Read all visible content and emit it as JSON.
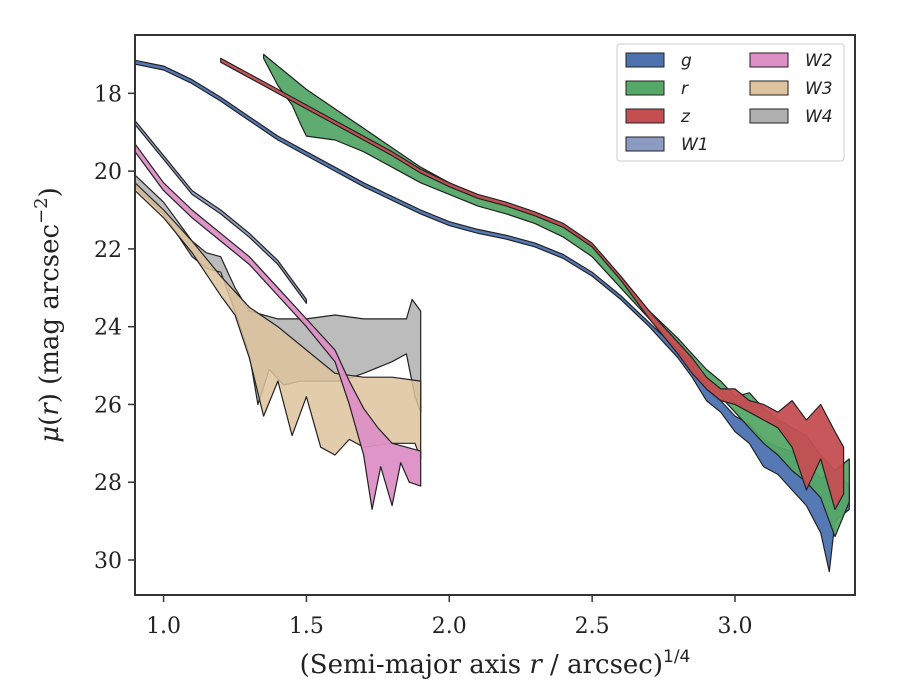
{
  "chart_data": {
    "type": "area",
    "xlabel": "(Semi-major axis r / arcsec)^1/4",
    "ylabel": "μ(r) (mag arcsec^−2)",
    "xlim": [
      0.9,
      3.42
    ],
    "ylim": [
      30.9,
      16.5
    ],
    "y_inverted": true,
    "xticks": [
      1.0,
      1.5,
      2.0,
      2.5,
      3.0
    ],
    "xtick_labels": [
      "1.0",
      "1.5",
      "2.0",
      "2.5",
      "3.0"
    ],
    "yticks": [
      18,
      20,
      22,
      24,
      26,
      28,
      30
    ],
    "ytick_labels": [
      "18",
      "20",
      "22",
      "24",
      "26",
      "28",
      "30"
    ],
    "grid": false,
    "legend": {
      "placement": "top-right",
      "columns": 2
    },
    "colors": {
      "g": "#4c72b0",
      "r": "#55a868",
      "z": "#c44e52",
      "W1": "#8c9bc2",
      "W2": "#dd8fc6",
      "W3": "#ddc39e",
      "W4": "#b0b0b0"
    },
    "series": [
      {
        "name": "g",
        "upper": [
          [
            0.9,
            17.15
          ],
          [
            1.0,
            17.3
          ],
          [
            1.1,
            17.65
          ],
          [
            1.2,
            18.1
          ],
          [
            1.3,
            18.6
          ],
          [
            1.4,
            19.1
          ],
          [
            1.5,
            19.5
          ],
          [
            1.6,
            19.9
          ],
          [
            1.7,
            20.3
          ],
          [
            1.8,
            20.65
          ],
          [
            1.9,
            21.0
          ],
          [
            2.0,
            21.3
          ],
          [
            2.1,
            21.5
          ],
          [
            2.2,
            21.65
          ],
          [
            2.3,
            21.85
          ],
          [
            2.4,
            22.15
          ],
          [
            2.5,
            22.6
          ],
          [
            2.6,
            23.2
          ],
          [
            2.7,
            23.9
          ],
          [
            2.8,
            24.6
          ],
          [
            2.85,
            25.0
          ],
          [
            2.9,
            25.6
          ],
          [
            2.95,
            25.9
          ],
          [
            3.0,
            26.3
          ],
          [
            3.05,
            26.5
          ],
          [
            3.1,
            26.9
          ],
          [
            3.15,
            27.1
          ],
          [
            3.2,
            27.2
          ],
          [
            3.25,
            27.5
          ],
          [
            3.3,
            27.9
          ],
          [
            3.35,
            27.7
          ],
          [
            3.4,
            28.1
          ]
        ],
        "lower": [
          [
            0.9,
            17.25
          ],
          [
            1.0,
            17.4
          ],
          [
            1.1,
            17.75
          ],
          [
            1.2,
            18.2
          ],
          [
            1.3,
            18.7
          ],
          [
            1.4,
            19.2
          ],
          [
            1.5,
            19.6
          ],
          [
            1.6,
            20.0
          ],
          [
            1.7,
            20.4
          ],
          [
            1.8,
            20.75
          ],
          [
            1.9,
            21.1
          ],
          [
            2.0,
            21.4
          ],
          [
            2.1,
            21.6
          ],
          [
            2.2,
            21.75
          ],
          [
            2.3,
            21.95
          ],
          [
            2.4,
            22.25
          ],
          [
            2.5,
            22.7
          ],
          [
            2.6,
            23.3
          ],
          [
            2.7,
            24.0
          ],
          [
            2.8,
            24.8
          ],
          [
            2.85,
            25.3
          ],
          [
            2.9,
            25.9
          ],
          [
            2.95,
            26.2
          ],
          [
            3.0,
            26.7
          ],
          [
            3.05,
            27.0
          ],
          [
            3.1,
            27.6
          ],
          [
            3.15,
            27.8
          ],
          [
            3.2,
            28.2
          ],
          [
            3.25,
            28.6
          ],
          [
            3.3,
            29.3
          ],
          [
            3.33,
            30.3
          ],
          [
            3.35,
            29.0
          ],
          [
            3.4,
            28.7
          ]
        ]
      },
      {
        "name": "r",
        "upper": [
          [
            1.35,
            17.0
          ],
          [
            1.4,
            17.3
          ],
          [
            1.5,
            17.9
          ],
          [
            1.6,
            18.4
          ],
          [
            1.7,
            18.9
          ],
          [
            1.8,
            19.4
          ],
          [
            1.9,
            19.9
          ],
          [
            2.0,
            20.3
          ],
          [
            2.1,
            20.65
          ],
          [
            2.2,
            20.85
          ],
          [
            2.3,
            21.1
          ],
          [
            2.4,
            21.4
          ],
          [
            2.5,
            21.9
          ],
          [
            2.6,
            22.7
          ],
          [
            2.7,
            23.6
          ],
          [
            2.8,
            24.3
          ],
          [
            2.85,
            24.7
          ],
          [
            2.9,
            25.1
          ],
          [
            2.95,
            25.4
          ],
          [
            3.0,
            25.8
          ],
          [
            3.05,
            25.7
          ],
          [
            3.1,
            26.1
          ],
          [
            3.15,
            26.4
          ],
          [
            3.2,
            26.6
          ],
          [
            3.25,
            26.8
          ],
          [
            3.3,
            27.3
          ],
          [
            3.35,
            27.7
          ],
          [
            3.4,
            27.4
          ]
        ],
        "lower": [
          [
            1.35,
            17.1
          ],
          [
            1.4,
            17.8
          ],
          [
            1.45,
            18.3
          ],
          [
            1.48,
            18.8
          ],
          [
            1.5,
            19.1
          ],
          [
            1.6,
            19.2
          ],
          [
            1.7,
            19.5
          ],
          [
            1.8,
            19.9
          ],
          [
            1.9,
            20.3
          ],
          [
            2.0,
            20.6
          ],
          [
            2.1,
            20.9
          ],
          [
            2.2,
            21.1
          ],
          [
            2.3,
            21.35
          ],
          [
            2.4,
            21.7
          ],
          [
            2.5,
            22.2
          ],
          [
            2.6,
            23.0
          ],
          [
            2.7,
            23.8
          ],
          [
            2.8,
            24.6
          ],
          [
            2.85,
            25.0
          ],
          [
            2.9,
            25.5
          ],
          [
            2.95,
            25.8
          ],
          [
            3.0,
            26.2
          ],
          [
            3.05,
            26.6
          ],
          [
            3.1,
            27.0
          ],
          [
            3.15,
            27.3
          ],
          [
            3.2,
            27.7
          ],
          [
            3.25,
            28.0
          ],
          [
            3.3,
            28.4
          ],
          [
            3.35,
            29.4
          ],
          [
            3.4,
            28.5
          ]
        ]
      },
      {
        "name": "z",
        "upper": [
          [
            1.2,
            17.1
          ],
          [
            1.3,
            17.5
          ],
          [
            1.4,
            17.9
          ],
          [
            1.5,
            18.3
          ],
          [
            1.6,
            18.7
          ],
          [
            1.7,
            19.1
          ],
          [
            1.8,
            19.5
          ],
          [
            1.9,
            19.95
          ],
          [
            2.0,
            20.3
          ],
          [
            2.1,
            20.6
          ],
          [
            2.2,
            20.8
          ],
          [
            2.3,
            21.05
          ],
          [
            2.4,
            21.35
          ],
          [
            2.5,
            21.85
          ],
          [
            2.6,
            22.7
          ],
          [
            2.7,
            23.6
          ],
          [
            2.8,
            24.4
          ],
          [
            2.85,
            24.8
          ],
          [
            2.9,
            25.3
          ],
          [
            2.95,
            25.6
          ],
          [
            3.0,
            25.6
          ],
          [
            3.05,
            25.9
          ],
          [
            3.1,
            26.0
          ],
          [
            3.15,
            26.2
          ],
          [
            3.2,
            25.9
          ],
          [
            3.25,
            26.4
          ],
          [
            3.3,
            26.0
          ],
          [
            3.35,
            26.7
          ],
          [
            3.38,
            27.1
          ]
        ],
        "lower": [
          [
            1.2,
            17.2
          ],
          [
            1.3,
            17.6
          ],
          [
            1.4,
            18.0
          ],
          [
            1.5,
            18.4
          ],
          [
            1.6,
            18.8
          ],
          [
            1.7,
            19.2
          ],
          [
            1.8,
            19.6
          ],
          [
            1.9,
            20.05
          ],
          [
            2.0,
            20.4
          ],
          [
            2.1,
            20.7
          ],
          [
            2.2,
            20.9
          ],
          [
            2.3,
            21.15
          ],
          [
            2.4,
            21.45
          ],
          [
            2.5,
            21.95
          ],
          [
            2.6,
            22.8
          ],
          [
            2.7,
            23.8
          ],
          [
            2.8,
            24.7
          ],
          [
            2.85,
            25.2
          ],
          [
            2.9,
            25.6
          ],
          [
            2.95,
            25.9
          ],
          [
            3.0,
            26.0
          ],
          [
            3.05,
            26.2
          ],
          [
            3.1,
            26.4
          ],
          [
            3.15,
            26.6
          ],
          [
            3.2,
            27.1
          ],
          [
            3.25,
            28.2
          ],
          [
            3.3,
            27.4
          ],
          [
            3.35,
            28.7
          ],
          [
            3.38,
            28.3
          ]
        ]
      },
      {
        "name": "W1",
        "upper": [
          [
            0.9,
            18.7
          ],
          [
            1.0,
            19.6
          ],
          [
            1.1,
            20.5
          ],
          [
            1.2,
            21.0
          ],
          [
            1.3,
            21.6
          ],
          [
            1.4,
            22.3
          ],
          [
            1.45,
            22.8
          ],
          [
            1.5,
            23.3
          ]
        ],
        "lower": [
          [
            0.9,
            18.8
          ],
          [
            1.0,
            19.7
          ],
          [
            1.1,
            20.6
          ],
          [
            1.2,
            21.1
          ],
          [
            1.3,
            21.7
          ],
          [
            1.4,
            22.4
          ],
          [
            1.45,
            22.9
          ],
          [
            1.5,
            23.4
          ]
        ]
      },
      {
        "name": "W2",
        "upper": [
          [
            0.9,
            19.3
          ],
          [
            1.0,
            20.3
          ],
          [
            1.1,
            21.0
          ],
          [
            1.2,
            21.6
          ],
          [
            1.3,
            22.2
          ],
          [
            1.4,
            23.0
          ],
          [
            1.5,
            23.8
          ],
          [
            1.6,
            24.6
          ],
          [
            1.65,
            25.4
          ],
          [
            1.7,
            26.1
          ],
          [
            1.75,
            26.6
          ],
          [
            1.8,
            27.0
          ],
          [
            1.85,
            27.1
          ],
          [
            1.9,
            27.2
          ]
        ],
        "lower": [
          [
            0.9,
            19.5
          ],
          [
            1.0,
            20.5
          ],
          [
            1.1,
            21.2
          ],
          [
            1.2,
            21.8
          ],
          [
            1.3,
            22.4
          ],
          [
            1.4,
            23.2
          ],
          [
            1.5,
            24.0
          ],
          [
            1.6,
            24.9
          ],
          [
            1.65,
            26.0
          ],
          [
            1.7,
            27.3
          ],
          [
            1.73,
            28.7
          ],
          [
            1.76,
            27.6
          ],
          [
            1.8,
            28.6
          ],
          [
            1.83,
            27.5
          ],
          [
            1.86,
            28.0
          ],
          [
            1.9,
            28.1
          ]
        ]
      },
      {
        "name": "W3",
        "upper": [
          [
            0.9,
            20.3
          ],
          [
            1.0,
            21.0
          ],
          [
            1.1,
            21.8
          ],
          [
            1.2,
            22.7
          ],
          [
            1.3,
            23.5
          ],
          [
            1.4,
            24.0
          ],
          [
            1.5,
            24.6
          ],
          [
            1.6,
            25.2
          ],
          [
            1.7,
            25.3
          ],
          [
            1.8,
            25.3
          ],
          [
            1.9,
            25.4
          ]
        ],
        "lower": [
          [
            0.9,
            20.5
          ],
          [
            1.0,
            21.2
          ],
          [
            1.1,
            22.1
          ],
          [
            1.2,
            23.2
          ],
          [
            1.25,
            23.7
          ],
          [
            1.3,
            24.8
          ],
          [
            1.35,
            26.3
          ],
          [
            1.4,
            25.4
          ],
          [
            1.45,
            26.8
          ],
          [
            1.5,
            25.8
          ],
          [
            1.55,
            27.1
          ],
          [
            1.6,
            27.3
          ],
          [
            1.65,
            26.9
          ],
          [
            1.7,
            27.1
          ],
          [
            1.8,
            27.0
          ],
          [
            1.88,
            27.0
          ],
          [
            1.9,
            27.4
          ]
        ]
      },
      {
        "name": "W4",
        "upper": [
          [
            0.9,
            20.1
          ],
          [
            1.0,
            20.8
          ],
          [
            1.1,
            21.8
          ],
          [
            1.15,
            22.1
          ],
          [
            1.2,
            22.2
          ],
          [
            1.25,
            23.0
          ],
          [
            1.3,
            23.6
          ],
          [
            1.4,
            23.8
          ],
          [
            1.5,
            23.8
          ],
          [
            1.6,
            23.7
          ],
          [
            1.7,
            23.8
          ],
          [
            1.8,
            23.8
          ],
          [
            1.85,
            23.8
          ],
          [
            1.87,
            23.3
          ],
          [
            1.9,
            23.6
          ]
        ],
        "lower": [
          [
            0.9,
            20.4
          ],
          [
            1.0,
            21.1
          ],
          [
            1.1,
            22.2
          ],
          [
            1.15,
            22.5
          ],
          [
            1.2,
            22.6
          ],
          [
            1.25,
            23.6
          ],
          [
            1.3,
            24.7
          ],
          [
            1.33,
            26.0
          ],
          [
            1.37,
            25.1
          ],
          [
            1.42,
            25.5
          ],
          [
            1.48,
            25.4
          ],
          [
            1.55,
            25.4
          ],
          [
            1.62,
            25.4
          ],
          [
            1.7,
            25.2
          ],
          [
            1.8,
            24.9
          ],
          [
            1.85,
            24.7
          ],
          [
            1.88,
            25.8
          ],
          [
            1.9,
            26.2
          ]
        ]
      }
    ]
  }
}
